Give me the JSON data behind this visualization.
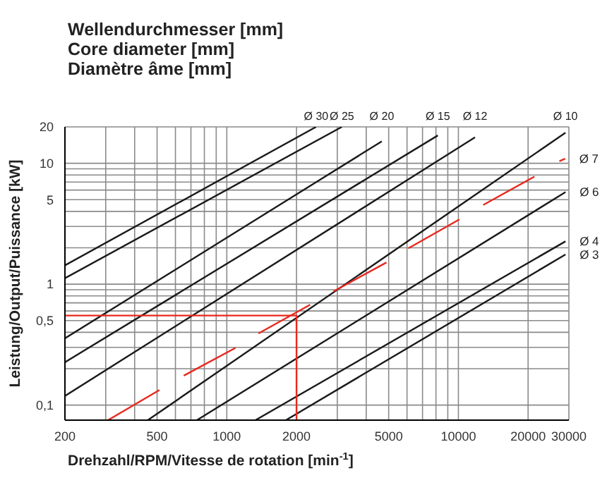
{
  "chart_data": {
    "type": "line",
    "title": "Wellendurchmesser [mm]\nCore diameter [mm]\nDiamètre âme [mm]",
    "xlabel": "Drehzahl/RPM/Vitesse de rotation [min$^{-1}$]",
    "ylabel": "Leistung/Output/Puissance [kW]",
    "log": "xy",
    "grid": true,
    "legend": false,
    "marker": "none",
    "xlim": [
      200,
      30000
    ],
    "ylim": [
      0.075,
      20
    ],
    "xticks": [
      200,
      {
        "value": 300,
        "label": null
      },
      {
        "value": 400,
        "label": null
      },
      500,
      {
        "value": 600,
        "label": null
      },
      {
        "value": 700,
        "label": null
      },
      {
        "value": 800,
        "label": null
      },
      {
        "value": 900,
        "label": null
      },
      1000,
      2000,
      {
        "value": 3000,
        "label": null
      },
      {
        "value": 4000,
        "label": null
      },
      5000,
      {
        "value": 6000,
        "label": null
      },
      {
        "value": 7000,
        "label": null
      },
      {
        "value": 8000,
        "label": null
      },
      {
        "value": 9000,
        "label": null
      },
      10000,
      20000,
      30000
    ],
    "yticks": [
      {
        "value": 0.1,
        "label": "0,1"
      },
      {
        "value": 0.2,
        "label": null
      },
      {
        "value": 0.3,
        "label": null
      },
      {
        "value": 0.4,
        "label": null
      },
      {
        "value": 0.5,
        "label": "0,5"
      },
      {
        "value": 0.6,
        "label": null
      },
      {
        "value": 0.7,
        "label": null
      },
      {
        "value": 0.8,
        "label": null
      },
      {
        "value": 0.9,
        "label": null
      },
      1,
      {
        "value": 2,
        "label": null
      },
      {
        "value": 3,
        "label": null
      },
      {
        "value": 4,
        "label": null
      },
      5,
      {
        "value": 6,
        "label": null
      },
      {
        "value": 7,
        "label": null
      },
      {
        "value": 8,
        "label": null
      },
      {
        "value": 9,
        "label": null
      },
      10,
      20
    ],
    "series": [
      {
        "name": "Ø 30",
        "color": "#1a1a1a",
        "x": [
          200,
          2430
        ],
        "values": [
          1.43,
          20
        ]
      },
      {
        "name": "Ø 25",
        "color": "#1a1a1a",
        "x": [
          200,
          3140
        ],
        "values": [
          1.12,
          20
        ]
      },
      {
        "name": "Ø 20",
        "color": "#1a1a1a",
        "x": [
          200,
          4670
        ],
        "values": [
          0.356,
          15.2
        ]
      },
      {
        "name": "Ø 15",
        "color": "#1a1a1a",
        "x": [
          200,
          8150
        ],
        "values": [
          0.226,
          17
        ]
      },
      {
        "name": "Ø 12",
        "color": "#1a1a1a",
        "x": [
          200,
          11800
        ],
        "values": [
          0.119,
          16.4
        ]
      },
      {
        "name": "Ø 10",
        "color": "#1a1a1a",
        "x": [
          456,
          29000
        ],
        "values": [
          0.075,
          17.9
        ]
      },
      {
        "name": "Ø 6",
        "color": "#1a1a1a",
        "x": [
          743,
          29000
        ],
        "values": [
          0.075,
          5.78
        ]
      },
      {
        "name": "Ø 4",
        "color": "#1a1a1a",
        "x": [
          1330,
          29000
        ],
        "values": [
          0.075,
          2.26
        ]
      },
      {
        "name": "Ø 3",
        "color": "#1a1a1a",
        "x": [
          1800,
          29000
        ],
        "values": [
          0.075,
          1.76
        ]
      },
      {
        "color": "#e8281e",
        "x": [
          307,
          512
        ],
        "values": [
          0.075,
          0.133
        ]
      },
      {
        "color": "#e8281e",
        "x": [
          652,
          1090
        ],
        "values": [
          0.175,
          0.297
        ]
      },
      {
        "color": "#e8281e",
        "x": [
          1370,
          2290
        ],
        "values": [
          0.391,
          0.676
        ]
      },
      {
        "color": "#e8281e",
        "x": [
          2890,
          4890
        ],
        "values": [
          0.872,
          1.51
        ]
      },
      {
        "color": "#e8281e",
        "x": [
          6080,
          10100
        ],
        "values": [
          1.98,
          3.43
        ]
      },
      {
        "color": "#e8281e",
        "x": [
          12800,
          21300
        ],
        "values": [
          4.52,
          7.76
        ]
      },
      {
        "name": "Ø 7",
        "color": "#e8281e",
        "x": [
          27300,
          28900
        ],
        "values": [
          10.4,
          10.9
        ]
      },
      {
        "color": "#e8281e",
        "x": [
          200,
          2000,
          2000
        ],
        "values": [
          0.55,
          0.55,
          0.075
        ]
      }
    ]
  }
}
